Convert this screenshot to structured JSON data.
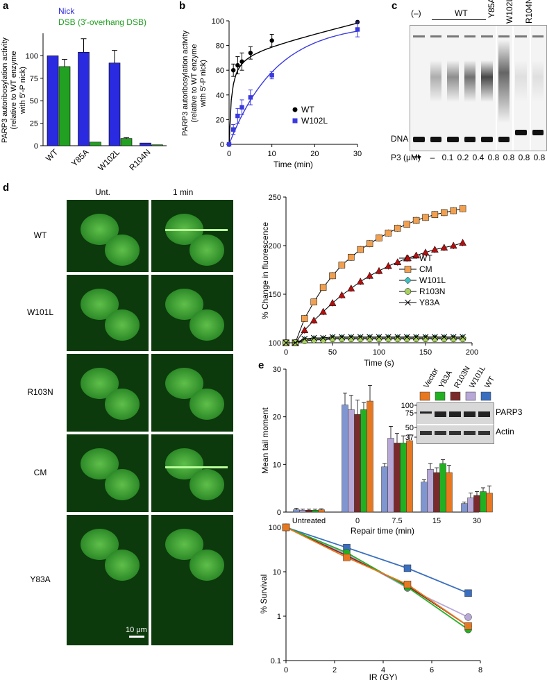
{
  "panel_labels": {
    "a": "a",
    "b": "b",
    "c": "c",
    "d": "d",
    "e": "e"
  },
  "chart_data": [
    {
      "id": "a",
      "type": "bar",
      "ylabel": "PARP3 autoribosylation activity (relative to WT enzyme with 5′-P nick)",
      "ylabel_lines": [
        "PARP3 autoribosylation activity",
        "(relative to WT enzyme",
        "with 5′-P nick)"
      ],
      "categories": [
        "WT",
        "Y85A",
        "W102L",
        "R104N"
      ],
      "series": [
        {
          "name": "Nick",
          "color": "#2a2ae0",
          "values": [
            100,
            104,
            92,
            3
          ],
          "errors": [
            0,
            15,
            14,
            0
          ]
        },
        {
          "name": "DSB (3′-overhang DSB)",
          "color": "#22a022",
          "values": [
            88,
            4,
            8,
            1
          ],
          "errors": [
            8,
            0,
            1,
            0
          ]
        }
      ],
      "yticks": [
        "0",
        "25",
        "50",
        "75",
        "100"
      ],
      "ylim": [
        0,
        125
      ],
      "legend": [
        "Nick",
        "DSB (3′-overhang DSB)"
      ]
    },
    {
      "id": "b",
      "type": "line",
      "xlabel": "Time (min)",
      "ylabel": "PARP3 autoribosylation activity (relative to WT enzyme with 5′-P nick)",
      "ylabel_lines": [
        "PARP3 autoribosylation activity",
        "(relative to WT enzyme",
        "with 5′-P nick)"
      ],
      "xlim": [
        0,
        30
      ],
      "ylim": [
        0,
        100
      ],
      "xticks": [
        "0",
        "10",
        "20",
        "30"
      ],
      "yticks": [
        "0",
        "20",
        "40",
        "60",
        "80",
        "100"
      ],
      "series": [
        {
          "name": "WT",
          "color": "#000000",
          "x": [
            0,
            1,
            2,
            3,
            5,
            10,
            30
          ],
          "y": [
            0,
            60,
            64,
            67,
            74,
            84,
            99
          ],
          "err": [
            0,
            5,
            7,
            7,
            5,
            5,
            0
          ]
        },
        {
          "name": "W102L",
          "color": "#3a3ae0",
          "x": [
            0,
            1,
            2,
            3,
            5,
            10,
            30
          ],
          "y": [
            0,
            12,
            23,
            30,
            38,
            56,
            93
          ],
          "err": [
            0,
            4,
            6,
            6,
            6,
            3,
            6
          ]
        }
      ]
    },
    {
      "id": "d",
      "type": "line",
      "xlabel": "Time (s)",
      "ylabel": "% Change in fluorescence",
      "xlim": [
        0,
        200
      ],
      "ylim": [
        100,
        250
      ],
      "xticks": [
        "0",
        "50",
        "100",
        "150",
        "200"
      ],
      "yticks": [
        "100",
        "150",
        "200",
        "250"
      ],
      "series": [
        {
          "name": "WT",
          "color": "#b01010",
          "values": [
            100,
            100,
            113,
            123,
            132,
            141,
            149,
            156,
            163,
            169,
            174,
            179,
            183,
            187,
            190,
            193,
            196,
            198,
            200,
            203
          ]
        },
        {
          "name": "CM",
          "color": "#f0a050",
          "values": [
            100,
            100,
            125,
            142,
            157,
            169,
            180,
            188,
            196,
            202,
            208,
            213,
            218,
            222,
            226,
            229,
            232,
            234,
            236,
            238
          ]
        },
        {
          "name": "W101L",
          "color": "#40c0c0",
          "values": [
            100,
            100,
            103,
            104,
            104,
            105,
            105,
            105,
            105,
            105,
            105,
            105,
            105,
            105,
            105,
            105,
            105,
            105,
            105,
            105
          ]
        },
        {
          "name": "R103N",
          "color": "#a8d060",
          "values": [
            100,
            100,
            102,
            103,
            103,
            104,
            104,
            104,
            104,
            104,
            104,
            104,
            104,
            104,
            104,
            104,
            104,
            104,
            104,
            104
          ]
        },
        {
          "name": "Y83A",
          "color": "#333333",
          "values": [
            100,
            100,
            104,
            105,
            105,
            106,
            106,
            106,
            106,
            106,
            106,
            106,
            106,
            106,
            106,
            106,
            106,
            106,
            106,
            106
          ]
        }
      ]
    },
    {
      "id": "e1",
      "type": "bar",
      "xlabel": "Repair time (min)",
      "ylabel": "Mean tail moment",
      "categories": [
        "Untreated",
        "0",
        "7.5",
        "15",
        "30"
      ],
      "ylim": [
        0,
        30
      ],
      "yticks": [
        "0",
        "10",
        "20",
        "30"
      ],
      "series": [
        {
          "name": "WT",
          "color": "#7f96d0",
          "values": [
            0.5,
            22.5,
            9.5,
            6.3,
            1.8
          ],
          "errors": [
            0.3,
            2.5,
            0.7,
            0.5,
            0.3
          ]
        },
        {
          "name": "W101L",
          "color": "#b7a8d8",
          "values": [
            0.4,
            21.5,
            15.5,
            9,
            3
          ],
          "errors": [
            0.2,
            3,
            2.5,
            1.2,
            1
          ]
        },
        {
          "name": "R103N",
          "color": "#7a2a2a",
          "values": [
            0.4,
            20.5,
            14.5,
            8.3,
            3.5
          ],
          "errors": [
            0.2,
            3,
            2,
            1,
            0.8
          ]
        },
        {
          "name": "Y83A",
          "color": "#22b022",
          "values": [
            0.4,
            21.5,
            14.5,
            10.2,
            4.3
          ],
          "errors": [
            0.2,
            1.5,
            1.5,
            0.8,
            0.8
          ]
        },
        {
          "name": "Vector",
          "color": "#e8781f",
          "values": [
            0.5,
            23.3,
            15,
            8.3,
            4
          ],
          "errors": [
            0.2,
            3.3,
            1.2,
            1.5,
            1.5
          ]
        }
      ]
    },
    {
      "id": "e2",
      "type": "line",
      "xlabel": "IR (GY)",
      "ylabel": "% Survival",
      "yscale": "log",
      "xlim": [
        0,
        8
      ],
      "ylim": [
        0.1,
        100
      ],
      "xticks": [
        "0",
        "2",
        "4",
        "6",
        "8"
      ],
      "yticks": [
        "0.1",
        "1",
        "10",
        "100"
      ],
      "series": [
        {
          "name": "WT",
          "color": "#3a6fc0",
          "x": [
            0,
            2.5,
            5,
            7.5
          ],
          "y": [
            100,
            35,
            12,
            3.3
          ]
        },
        {
          "name": "W101L",
          "color": "#b7a8d8",
          "x": [
            0,
            2.5,
            5,
            7.5
          ],
          "y": [
            100,
            25,
            4.3,
            0.95
          ]
        },
        {
          "name": "R103N",
          "color": "#7a2a2a",
          "x": [
            0,
            2.5,
            5,
            7.5
          ],
          "y": [
            100,
            23,
            4.8,
            0.6
          ]
        },
        {
          "name": "Y83A",
          "color": "#22b022",
          "x": [
            0,
            2.5,
            5,
            7.5
          ],
          "y": [
            100,
            27,
            4.5,
            0.5
          ]
        },
        {
          "name": "Vector",
          "color": "#e8781f",
          "x": [
            0,
            2.5,
            5,
            7.5
          ],
          "y": [
            100,
            21,
            5.2,
            0.6
          ]
        }
      ]
    }
  ],
  "gel_c": {
    "neg": "(–)",
    "wt": "WT",
    "lanes_top": [
      "Y85A",
      "W102L",
      "R104N"
    ],
    "dna": "DNA",
    "p3_label": "P3 (μM)",
    "conc": [
      "–",
      "0.1",
      "0.2",
      "0.4",
      "0.8",
      "0.8",
      "0.8",
      "0.8"
    ]
  },
  "panel_d_images": {
    "col_untreated": "Unt.",
    "col_1min": "1 min",
    "rows": [
      "WT",
      "W101L",
      "R103N",
      "CM",
      "Y83A"
    ],
    "scalebar": "10 μm"
  },
  "blot_e": {
    "lanes": [
      "Vector",
      "Y83A",
      "R103N",
      "W101L",
      "WT"
    ],
    "lane_colors": [
      "#e8781f",
      "#22b022",
      "#7a2a2a",
      "#b7a8d8",
      "#3a6fc0"
    ],
    "markers": [
      "100",
      "75",
      "50",
      "37"
    ],
    "bands": [
      "PARP3",
      "Actin"
    ]
  }
}
